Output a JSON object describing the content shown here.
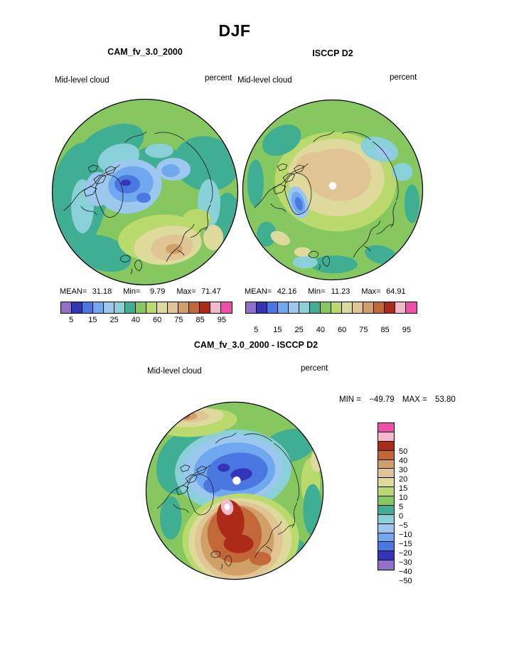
{
  "page": {
    "title": "DJF"
  },
  "panels": {
    "cam": {
      "title": "CAM_fv_3.0_2000",
      "variable": "Mid-level cloud",
      "units": "percent",
      "stats": {
        "mean_label": "MEAN=",
        "mean": "31.18",
        "min_label": "Min=",
        "min": "9.79",
        "max_label": "Max=",
        "max": "71.47"
      },
      "colorbar_ticks": [
        "5",
        "15",
        "25",
        "40",
        "60",
        "75",
        "85",
        "95"
      ]
    },
    "isccp": {
      "title": "ISCCP D2",
      "variable": "Mid-level cloud",
      "units": "percent",
      "stats": {
        "mean_label": "MEAN=",
        "mean": "42.16",
        "min_label": "Min=",
        "min": "11.23",
        "max_label": "Max=",
        "max": "64.91"
      },
      "colorbar_ticks": [
        "5",
        "15",
        "25",
        "40",
        "60",
        "75",
        "85",
        "95"
      ]
    },
    "diff": {
      "title": "CAM_fv_3.0_2000 - ISCCP D2",
      "variable": "Mid-level cloud",
      "units": "percent",
      "range": {
        "min_label": "MIN =",
        "min": "−49.79",
        "max_label": "MAX =",
        "max": "53.80"
      },
      "colorbar_labels": [
        "50",
        "40",
        "30",
        "20",
        "15",
        "10",
        "5",
        "0",
        "−5",
        "−10",
        "−15",
        "−20",
        "−30",
        "−40",
        "−50"
      ]
    }
  },
  "palette": {
    "cloud": [
      "#9070C8",
      "#3434B8",
      "#4A78E0",
      "#70A8F0",
      "#9CC8F0",
      "#8AD0D8",
      "#40AE92",
      "#86C75F",
      "#BADA6E",
      "#DEDA9C",
      "#E0C494",
      "#D0A068",
      "#C26838",
      "#AC2A18",
      "#F2B8CC",
      "#EE4FA8"
    ],
    "diff": [
      "#EE4FA8",
      "#F2B8CC",
      "#AC2A18",
      "#C26838",
      "#D0A068",
      "#E0C494",
      "#DEDA9C",
      "#BADA6E",
      "#86C75F",
      "#40AE92",
      "#8AD0D8",
      "#9CC8F0",
      "#70A8F0",
      "#4A78E0",
      "#3434B8",
      "#9070C8"
    ]
  },
  "chart_data": [
    {
      "type": "heatmap",
      "subtype": "filled-contour-polar-map",
      "projection": "north-polar-stereographic",
      "season": "DJF",
      "title": "CAM_fv_3.0_2000",
      "variable": "Mid-level cloud",
      "units": "percent",
      "stats": {
        "mean": 31.18,
        "min": 9.79,
        "max": 71.47
      },
      "contour_levels": [
        5,
        10,
        15,
        20,
        25,
        30,
        40,
        50,
        60,
        70,
        75,
        80,
        85,
        90,
        95
      ],
      "labeled_levels": [
        5,
        15,
        25,
        40,
        60,
        75,
        85,
        95
      ],
      "palette_low_to_high": [
        "#9070C8",
        "#3434B8",
        "#4A78E0",
        "#70A8F0",
        "#9CC8F0",
        "#8AD0D8",
        "#40AE92",
        "#86C75F",
        "#BADA6E",
        "#DEDA9C",
        "#E0C494",
        "#D0A068",
        "#C26838",
        "#AC2A18",
        "#F2B8CC",
        "#EE4FA8"
      ],
      "legend_position": "horizontal-below"
    },
    {
      "type": "heatmap",
      "subtype": "filled-contour-polar-map",
      "projection": "north-polar-stereographic",
      "season": "DJF",
      "title": "ISCCP D2",
      "variable": "Mid-level cloud",
      "units": "percent",
      "stats": {
        "mean": 42.16,
        "min": 11.23,
        "max": 64.91
      },
      "contour_levels": [
        5,
        10,
        15,
        20,
        25,
        30,
        40,
        50,
        60,
        70,
        75,
        80,
        85,
        90,
        95
      ],
      "labeled_levels": [
        5,
        15,
        25,
        40,
        60,
        75,
        85,
        95
      ],
      "palette_low_to_high": [
        "#9070C8",
        "#3434B8",
        "#4A78E0",
        "#70A8F0",
        "#9CC8F0",
        "#8AD0D8",
        "#40AE92",
        "#86C75F",
        "#BADA6E",
        "#DEDA9C",
        "#E0C494",
        "#D0A068",
        "#C26838",
        "#AC2A18",
        "#F2B8CC",
        "#EE4FA8"
      ],
      "notes": "white circle at pole = observational data hole",
      "legend_position": "horizontal-below"
    },
    {
      "type": "heatmap",
      "subtype": "filled-contour-polar-map-difference",
      "projection": "north-polar-stereographic",
      "season": "DJF",
      "title": "CAM_fv_3.0_2000 - ISCCP D2",
      "variable": "Mid-level cloud",
      "units": "percent",
      "stats": {
        "min": -49.79,
        "max": 53.8
      },
      "contour_levels": [
        -50,
        -40,
        -30,
        -20,
        -15,
        -10,
        -5,
        0,
        5,
        10,
        15,
        20,
        30,
        40,
        50
      ],
      "palette_high_to_low": [
        "#EE4FA8",
        "#F2B8CC",
        "#AC2A18",
        "#C26838",
        "#D0A068",
        "#E0C494",
        "#DEDA9C",
        "#BADA6E",
        "#86C75F",
        "#40AE92",
        "#8AD0D8",
        "#9CC8F0",
        "#70A8F0",
        "#4A78E0",
        "#3434B8",
        "#9070C8"
      ],
      "notes": "white circle at pole = observational data hole",
      "legend_position": "vertical-right"
    }
  ]
}
